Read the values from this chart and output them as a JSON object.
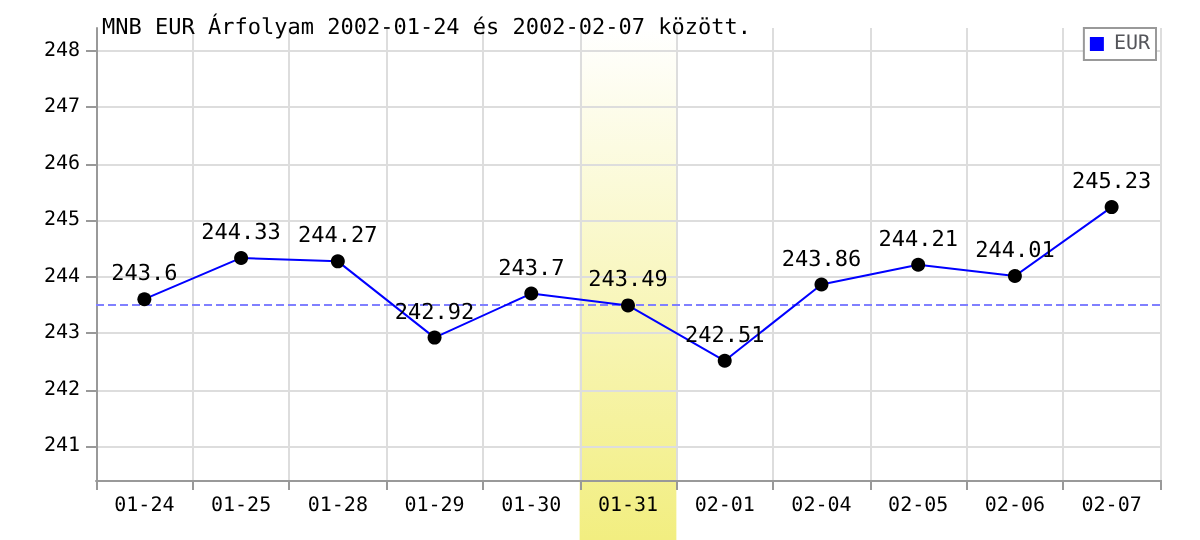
{
  "chart_data": {
    "type": "line",
    "title": "MNB EUR Árfolyam 2002-01-24 és 2002-02-07 között.",
    "categories": [
      "01-24",
      "01-25",
      "01-28",
      "01-29",
      "01-30",
      "01-31",
      "02-01",
      "02-04",
      "02-05",
      "02-06",
      "02-07"
    ],
    "series": [
      {
        "name": "EUR",
        "color": "#0000ff",
        "values": [
          243.6,
          244.33,
          244.27,
          242.92,
          243.7,
          243.49,
          242.51,
          243.86,
          244.21,
          244.01,
          245.23
        ]
      }
    ],
    "ylim": [
      240.4,
      248.4
    ],
    "yticks": [
      241,
      242,
      243,
      244,
      245,
      246,
      247,
      248
    ],
    "grid": true,
    "legend": "top right",
    "marker": "circle",
    "data_labels": true,
    "ref_lines": [
      {
        "axis": "y",
        "value": 243.5,
        "label": null,
        "color": "#8080ff",
        "line_style": "dashed"
      }
    ],
    "bands": [
      {
        "axis": "x",
        "from": "01-31",
        "to": "01-31",
        "label": null,
        "color": "#f2ee80"
      }
    ]
  }
}
